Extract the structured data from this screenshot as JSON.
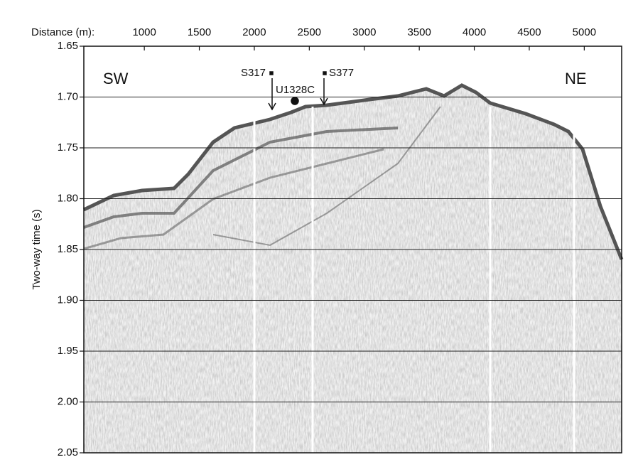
{
  "chart_data": {
    "type": "seismic-section",
    "x_label": "Distance (m):",
    "y_label": "Two-way time (s)",
    "xlim": [
      450,
      5340
    ],
    "xticks": [
      1000,
      1500,
      2000,
      2500,
      3000,
      3500,
      4000,
      4500,
      5000
    ],
    "ylim": [
      1.65,
      2.05
    ],
    "y_inverted": true,
    "yticks": [
      {
        "value": 1.65,
        "label": "1.65"
      },
      {
        "value": 1.7,
        "label": "1.70"
      },
      {
        "value": 1.75,
        "label": "1.75"
      },
      {
        "value": 1.8,
        "label": "1.80"
      },
      {
        "value": 1.85,
        "label": "1.85"
      },
      {
        "value": 1.9,
        "label": "1.90"
      },
      {
        "value": 1.95,
        "label": "1.95"
      },
      {
        "value": 2.0,
        "label": "2.00"
      },
      {
        "value": 2.05,
        "label": "2.05"
      }
    ],
    "grid": true,
    "annotations": [
      "SW",
      "NE",
      "S317",
      "S377",
      "U1328C"
    ]
  }
}
